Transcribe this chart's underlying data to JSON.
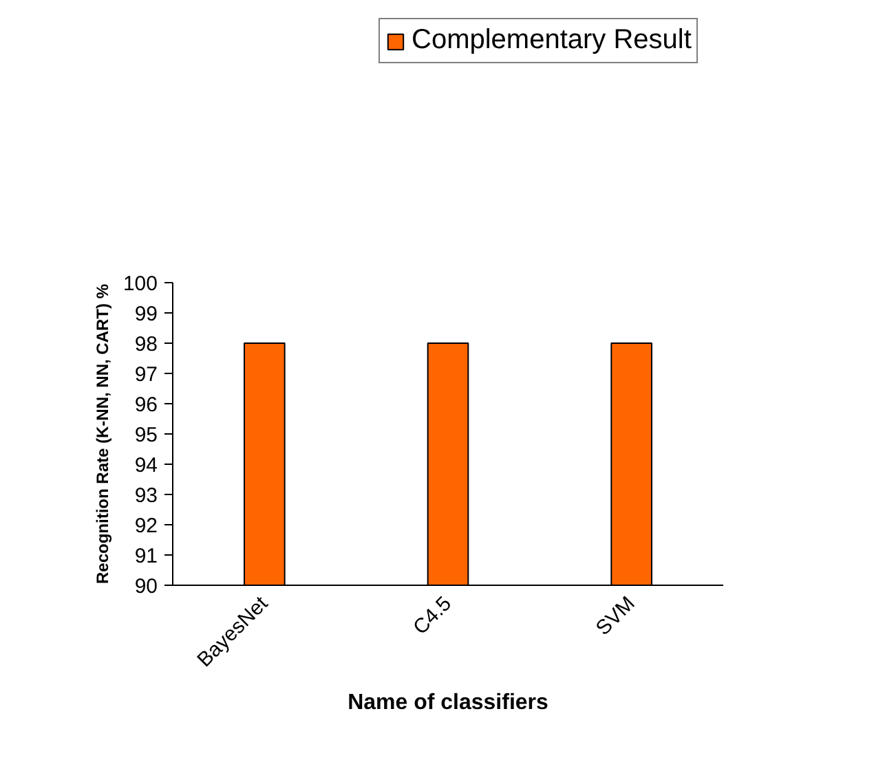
{
  "chart_data": {
    "type": "bar",
    "categories": [
      "BayesNet",
      "C4.5",
      "SVM"
    ],
    "series": [
      {
        "name": "Complementary Result",
        "color": "#ff6600",
        "values": [
          98,
          98,
          98
        ]
      }
    ],
    "xlabel": "Name of classifiers",
    "ylabel": "Recognition Rate (K-NN, NN, CART) %",
    "ylim": [
      90,
      100
    ],
    "yticks": [
      90,
      91,
      92,
      93,
      94,
      95,
      96,
      97,
      98,
      99,
      100
    ],
    "grid": false,
    "legend": "top"
  }
}
